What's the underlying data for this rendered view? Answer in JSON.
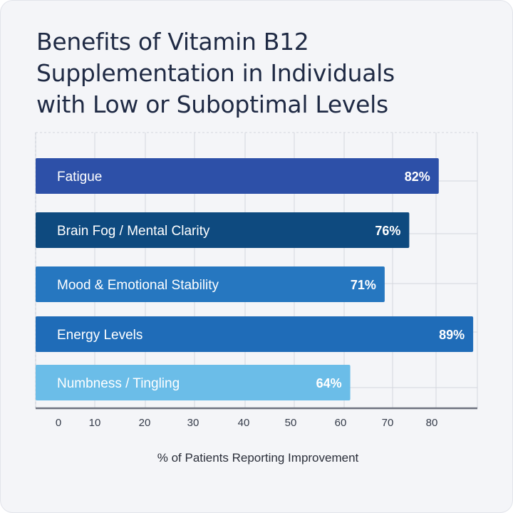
{
  "chart_data": {
    "type": "bar",
    "orientation": "horizontal",
    "title": "Benefits of Vitamin B12 Supplementation in Individuals with Low or Suboptimal Levels",
    "title_lines": [
      "Benefits of Vitamin B12",
      "Supplementation in Individuals",
      "with Low or Suboptimal Levels"
    ],
    "xlabel": "% of Patients Reporting Improvement",
    "ylabel": "",
    "categories": [
      "Fatigue",
      "Brain Fog / Mental Clarity",
      "Mood & Emotional Stability",
      "Energy Levels",
      "Numbness / Tingling"
    ],
    "values": [
      82,
      76,
      71,
      89,
      64
    ],
    "value_labels": [
      "82%",
      "76%",
      "71%",
      "89%",
      "64%"
    ],
    "colors": [
      "#2d50a8",
      "#0e4a7f",
      "#2677c0",
      "#1f6cb8",
      "#6bbde8"
    ],
    "xticks": [
      0,
      10,
      20,
      30,
      40,
      50,
      60,
      70,
      80
    ],
    "xlim": [
      0,
      90
    ],
    "grid": true,
    "legend": "none"
  }
}
